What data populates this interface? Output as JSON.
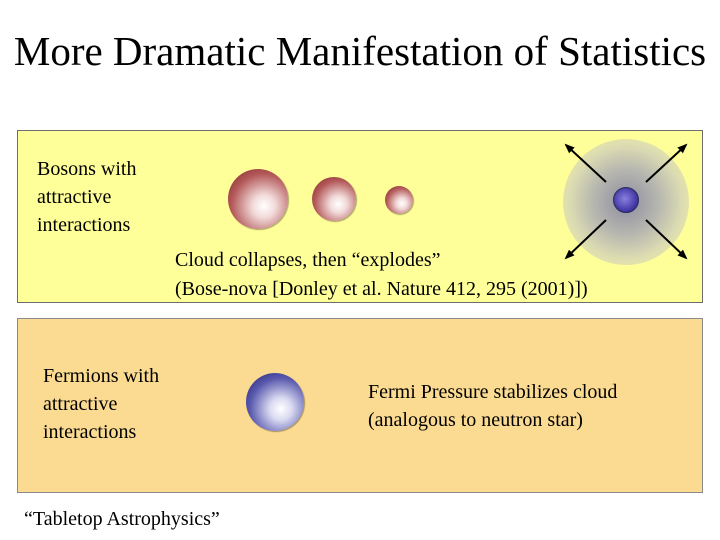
{
  "title": "More Dramatic Manifestation of Statistics",
  "boson_panel": {
    "label": "Bosons with\nattractive\ninteractions",
    "caption_line1": "Cloud collapses, then “explodes”",
    "caption_line2": "(Bose-nova [Donley et al. Nature 412, 295 (2001)])"
  },
  "fermion_panel": {
    "label": "Fermions with\nattractive\ninteractions",
    "caption": "Fermi Pressure stabilizes cloud\n(analogous to neutron star)"
  },
  "footer": "“Tabletop Astrophysics”",
  "colors": {
    "boson_panel_bg": "#ffff99",
    "fermion_panel_bg": "#fbdb92",
    "boson_cloud": "#8b2b2b",
    "fermion_cloud": "#2a2a80",
    "explosion_core": "#3c32a0"
  },
  "icons": [
    "collapsing-cloud-large",
    "collapsing-cloud-medium",
    "collapsing-cloud-small",
    "explosion-core",
    "explosion-arrow",
    "fermion-cloud"
  ]
}
